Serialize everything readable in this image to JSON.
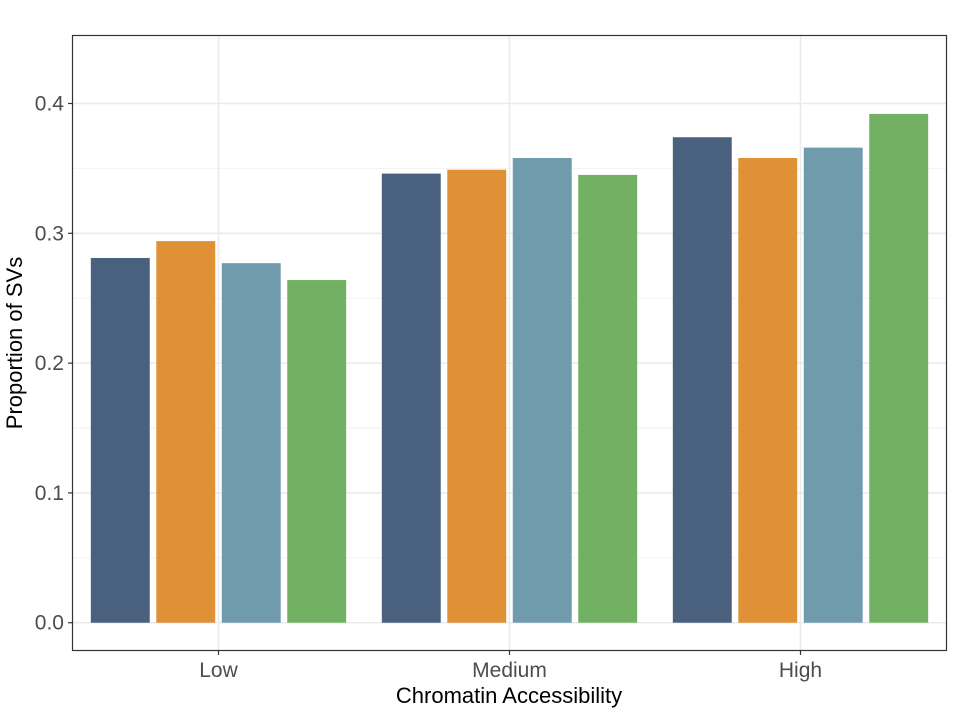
{
  "chart_data": {
    "type": "bar",
    "title": "",
    "xlabel": "Chromatin Accessibility",
    "ylabel": "Proportion of SVs",
    "categories": [
      "Low",
      "Medium",
      "High"
    ],
    "series": [
      {
        "color": "#4a607f",
        "values": [
          0.281,
          0.346,
          0.374
        ]
      },
      {
        "color": "#e09136",
        "values": [
          0.294,
          0.349,
          0.358
        ]
      },
      {
        "color": "#709bad",
        "values": [
          0.277,
          0.358,
          0.366
        ]
      },
      {
        "color": "#72b064",
        "values": [
          0.264,
          0.345,
          0.392
        ]
      }
    ],
    "ylim": [
      -0.021,
      0.452
    ],
    "yticks": [
      {
        "value": 0.0,
        "label": "0.0"
      },
      {
        "value": 0.1,
        "label": "0.1"
      },
      {
        "value": 0.2,
        "label": "0.2"
      },
      {
        "value": 0.3,
        "label": "0.3"
      },
      {
        "value": 0.4,
        "label": "0.4"
      }
    ],
    "grid": true,
    "legend": "none"
  }
}
